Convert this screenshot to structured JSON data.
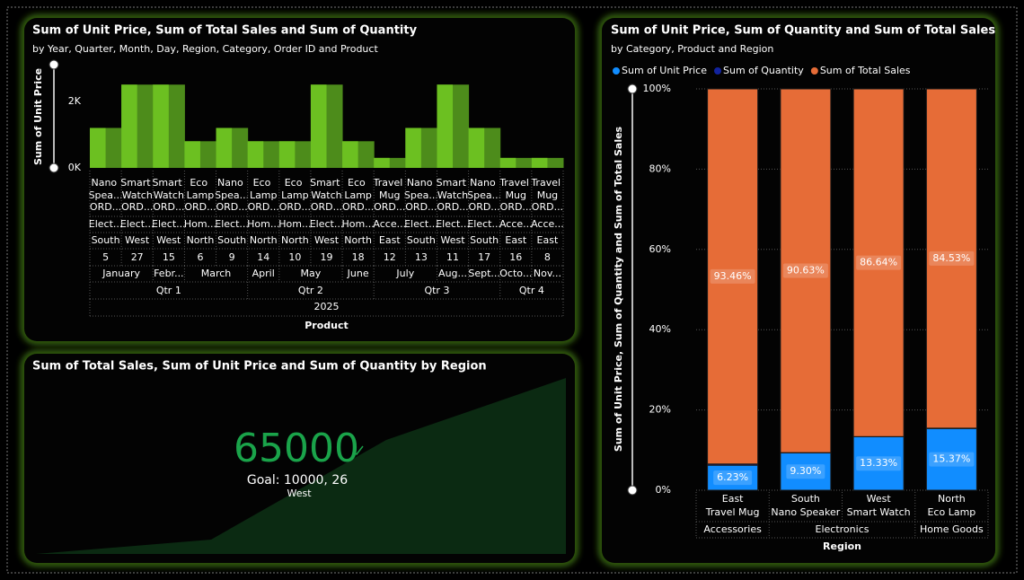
{
  "chart_data": [
    {
      "type": "area",
      "title": "Sum of Unit Price, Sum of Total Sales and Sum of Quantity",
      "subtitle": "by Year, Quarter, Month, Day, Region, Category, Order ID and Product",
      "y_label": "Sum of Unit Price",
      "x_label": "Product",
      "categories": [
        "Nano Spea...",
        "Smart Watch",
        "Smart Watch",
        "Eco Lamp",
        "Nano Spea...",
        "Eco Lamp",
        "Eco Lamp",
        "Smart Watch",
        "Eco Lamp",
        "Travel Mug",
        "Nano Spea...",
        "Smart Watch",
        "Nano Spea...",
        "Travel Mug",
        "Travel Mug"
      ],
      "order_ids": [
        "ORD...",
        "ORD...",
        "ORD...",
        "ORD...",
        "ORD...",
        "ORD...",
        "ORD...",
        "ORD...",
        "ORD...",
        "ORD...",
        "ORD...",
        "ORD...",
        "ORD...",
        "ORD...",
        "ORD..."
      ],
      "product_categories": [
        "Elect...",
        "Elect...",
        "Elect...",
        "Hom...",
        "Elect...",
        "Hom...",
        "Hom...",
        "Elect...",
        "Hom...",
        "Acce...",
        "Elect...",
        "Elect...",
        "Elect...",
        "Acce...",
        "Acce..."
      ],
      "regions": [
        "South",
        "West",
        "West",
        "North",
        "South",
        "North",
        "North",
        "West",
        "North",
        "East",
        "South",
        "West",
        "South",
        "East",
        "East"
      ],
      "days": [
        5,
        27,
        15,
        6,
        9,
        14,
        10,
        19,
        18,
        12,
        13,
        11,
        17,
        16,
        8
      ],
      "months": [
        "January",
        "January",
        "Febr...",
        "March",
        "March",
        "April",
        "May",
        "May",
        "June",
        "July",
        "July",
        "Aug...",
        "Sept...",
        "Octo...",
        "Nov..."
      ],
      "quarters": [
        "Qtr 1",
        "Qtr 1",
        "Qtr 1",
        "Qtr 1",
        "Qtr 1",
        "Qtr 2",
        "Qtr 2",
        "Qtr 2",
        "Qtr 2",
        "Qtr 3",
        "Qtr 3",
        "Qtr 3",
        "Qtr 3",
        "Qtr 4",
        "Qtr 4"
      ],
      "years": [
        2025,
        2025,
        2025,
        2025,
        2025,
        2025,
        2025,
        2025,
        2025,
        2025,
        2025,
        2025,
        2025,
        2025,
        2025
      ],
      "values": [
        1200,
        2500,
        2500,
        800,
        1200,
        800,
        800,
        2500,
        800,
        300,
        1200,
        2500,
        1200,
        300,
        300
      ],
      "colors": [
        "#4d8c1b",
        "#6cc021"
      ],
      "ylim": [
        0,
        3100
      ],
      "yticks": [
        {
          "value": 0,
          "label": "0K"
        },
        {
          "value": 2000,
          "label": "2K"
        }
      ]
    },
    {
      "type": "bar",
      "stacked": "percent",
      "title": "Sum of Unit Price, Sum of Quantity and Sum of Total Sales",
      "subtitle": "by Category, Product and Region",
      "y_label": "Sum of Unit Price, Sum of Quantity and Sum of Total Sales",
      "x_label": "Region",
      "categories": [
        "East",
        "South",
        "West",
        "North"
      ],
      "products": [
        "Travel Mug",
        "Nano Speaker",
        "Smart Watch",
        "Eco Lamp"
      ],
      "product_categories": [
        "Accessories",
        "Electronics",
        "Electronics",
        "Home Goods"
      ],
      "series": [
        {
          "name": "Sum of Unit Price",
          "color": "#118dff",
          "values": [
            6.23,
            9.3,
            13.33,
            15.37
          ],
          "value_labels": [
            "6.23%",
            "9.30%",
            "13.33%",
            "15.37%"
          ]
        },
        {
          "name": "Sum of Quantity",
          "color": "#12239e",
          "values": [
            0.31,
            0.07,
            0.03,
            0.1
          ]
        },
        {
          "name": "Sum of Total Sales",
          "color": "#e66c37",
          "values": [
            93.46,
            90.63,
            86.64,
            84.53
          ],
          "value_labels": [
            "93.46%",
            "90.63%",
            "86.64%",
            "84.53%"
          ]
        }
      ],
      "ylim": [
        0,
        100
      ],
      "yticks": [
        {
          "value": 0,
          "label": "0%"
        },
        {
          "value": 20,
          "label": "20%"
        },
        {
          "value": 40,
          "label": "40%"
        },
        {
          "value": 60,
          "label": "60%"
        },
        {
          "value": 80,
          "label": "80%"
        },
        {
          "value": 100,
          "label": "100%"
        }
      ],
      "legend": "top-left",
      "grid": true
    },
    {
      "type": "kpi",
      "title": "Sum of Total Sales, Sum of Unit Price and Sum of Quantity by Region",
      "value": 65000,
      "goal": "Goal: 10000, 26",
      "label": "West",
      "color": "#1aa34a"
    }
  ]
}
